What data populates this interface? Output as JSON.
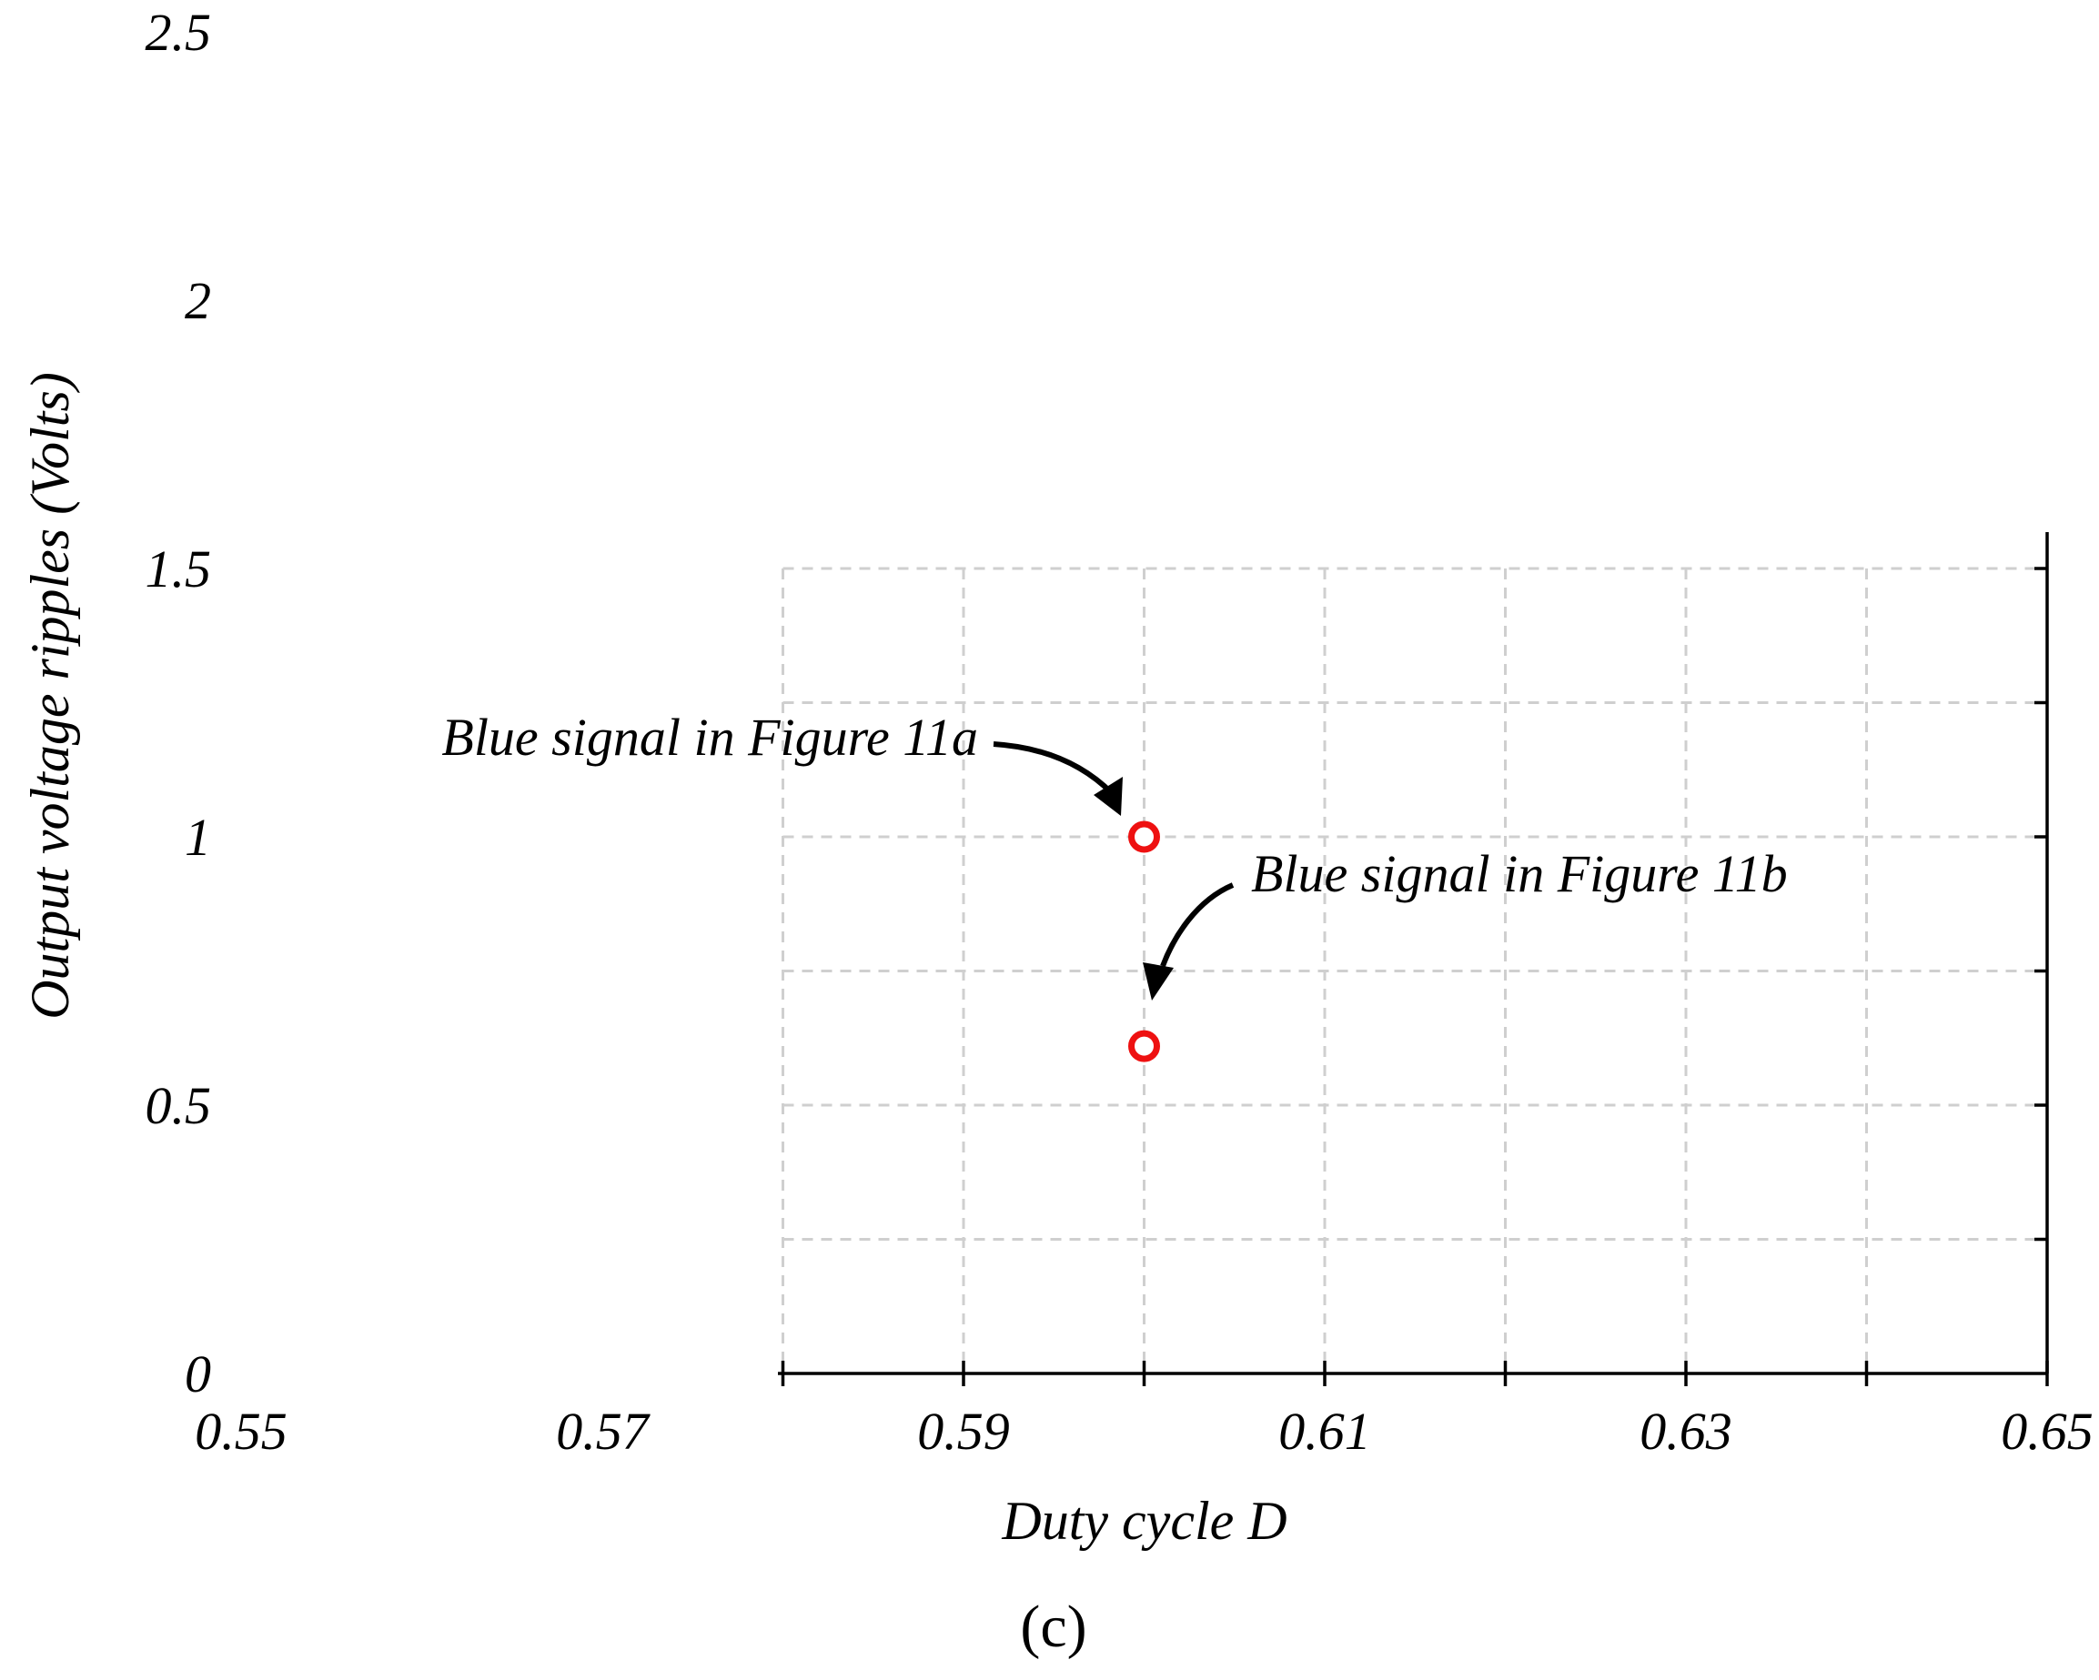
{
  "chart_data": {
    "type": "scatter",
    "title": "",
    "xlabel": "Duty cycle D",
    "ylabel": "Output voltage ripples (Volts)",
    "xlim": [
      0.55,
      0.65
    ],
    "ylim": [
      0,
      2.5
    ],
    "x_tick_labels": [
      "0.55",
      "0.57",
      "0.59",
      "0.61",
      "0.63",
      "0.65"
    ],
    "y_tick_labels": [
      "0",
      "0.5",
      "1",
      "1.5",
      "2",
      "2.5"
    ],
    "grid": true,
    "series": [
      {
        "marker": "open-circle",
        "color": "#ee1111",
        "points": [
          {
            "x": 0.6,
            "y": 1.0
          },
          {
            "x": 0.6,
            "y": 0.61
          }
        ]
      }
    ],
    "annotations": [
      {
        "text": "Blue signal in Figure 11a",
        "x": 0.6,
        "y": 1.0
      },
      {
        "text": "Blue signal in Figure 11b",
        "x": 0.6,
        "y": 0.61
      }
    ]
  },
  "panel_label": "(c)"
}
